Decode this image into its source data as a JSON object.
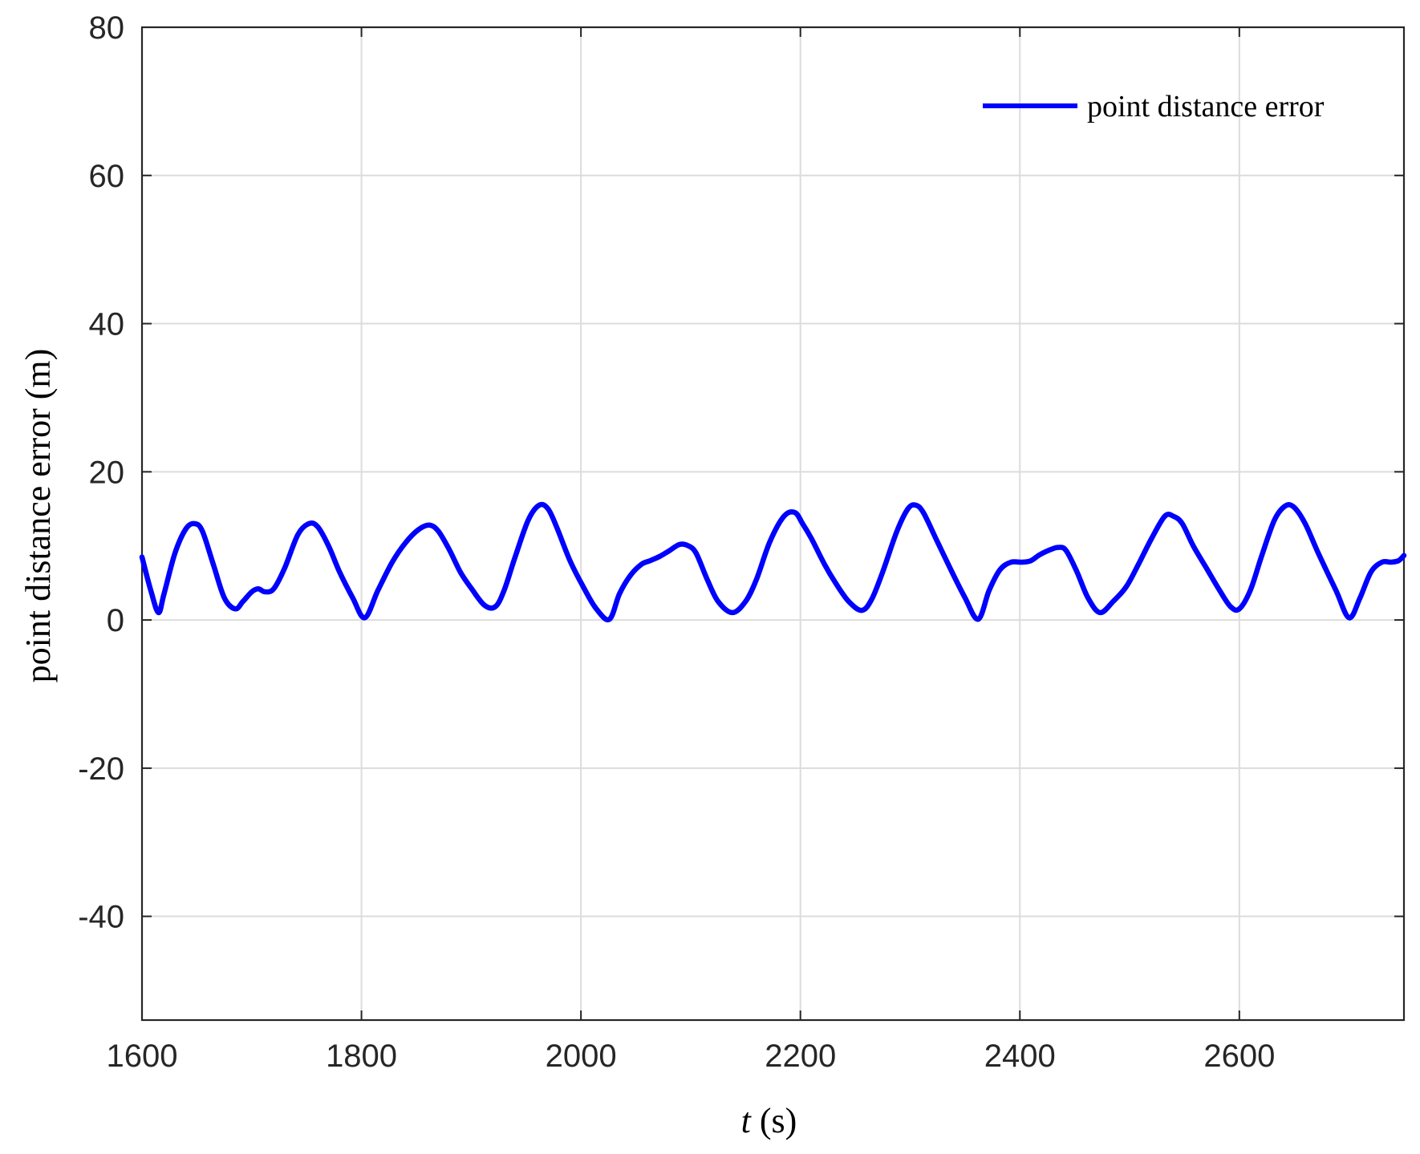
{
  "chart_data": {
    "type": "line",
    "title": "",
    "xlabel": {
      "italic": "t",
      "rest": " (s)"
    },
    "ylabel": "point distance error (m)",
    "xlim": [
      1600,
      2750
    ],
    "ylim": [
      -54,
      80
    ],
    "xticks": [
      1600,
      1800,
      2000,
      2200,
      2400,
      2600
    ],
    "yticks": [
      -40,
      -20,
      0,
      20,
      40,
      60,
      80
    ],
    "grid": true,
    "legend": {
      "position": "top-right"
    },
    "series": [
      {
        "name": "point distance error",
        "color": "#0000ff",
        "x": [
          1600,
          1608,
          1615,
          1620,
          1630,
          1640,
          1648,
          1655,
          1665,
          1675,
          1685,
          1692,
          1700,
          1706,
          1712,
          1720,
          1730,
          1742,
          1752,
          1760,
          1770,
          1780,
          1792,
          1803,
          1815,
          1828,
          1840,
          1852,
          1862,
          1870,
          1880,
          1890,
          1900,
          1912,
          1922,
          1930,
          1940,
          1952,
          1962,
          1970,
          1978,
          1990,
          2002,
          2014,
          2026,
          2035,
          2045,
          2055,
          2063,
          2072,
          2080,
          2090,
          2098,
          2105,
          2115,
          2125,
          2138,
          2150,
          2160,
          2172,
          2185,
          2195,
          2202,
          2210,
          2222,
          2232,
          2244,
          2256,
          2265,
          2275,
          2288,
          2298,
          2305,
          2312,
          2325,
          2338,
          2350,
          2362,
          2372,
          2382,
          2392,
          2402,
          2410,
          2418,
          2428,
          2435,
          2442,
          2452,
          2462,
          2473,
          2485,
          2497,
          2508,
          2520,
          2532,
          2540,
          2548,
          2558,
          2570,
          2582,
          2592,
          2600,
          2610,
          2620,
          2632,
          2642,
          2650,
          2660,
          2672,
          2688,
          2700,
          2710,
          2720,
          2730,
          2738,
          2745,
          2750
        ],
        "y": [
          8.5,
          4,
          1,
          3.5,
          9,
          12.3,
          13,
          12,
          7.5,
          3,
          1.5,
          2.5,
          3.8,
          4.2,
          3.8,
          4.2,
          7,
          11.5,
          13,
          12.6,
          10,
          6.5,
          3,
          0.3,
          4,
          7.8,
          10.4,
          12.2,
          12.8,
          12,
          9.5,
          6.5,
          4.3,
          2,
          1.8,
          4,
          8.5,
          13.5,
          15.5,
          15,
          12.5,
          8,
          4.5,
          1.5,
          0.1,
          3.5,
          6,
          7.5,
          8,
          8.6,
          9.3,
          10.2,
          10,
          9,
          5.5,
          2.5,
          1,
          2.5,
          5.5,
          10.5,
          14,
          14.5,
          13,
          11,
          7.5,
          5,
          2.5,
          1.3,
          2.8,
          6.5,
          12,
          15,
          15.5,
          14.5,
          10.5,
          6.5,
          3,
          0.1,
          4,
          6.8,
          7.8,
          7.8,
          8,
          8.8,
          9.5,
          9.8,
          9.4,
          6.5,
          3,
          1,
          2.5,
          4.5,
          7.5,
          11,
          14,
          14,
          13,
          10,
          7,
          4,
          1.8,
          1.5,
          4,
          8.5,
          13.5,
          15.4,
          15.2,
          13,
          9,
          4,
          0.3,
          3,
          6.5,
          7.8,
          7.8,
          8,
          8.7
        ]
      }
    ]
  }
}
